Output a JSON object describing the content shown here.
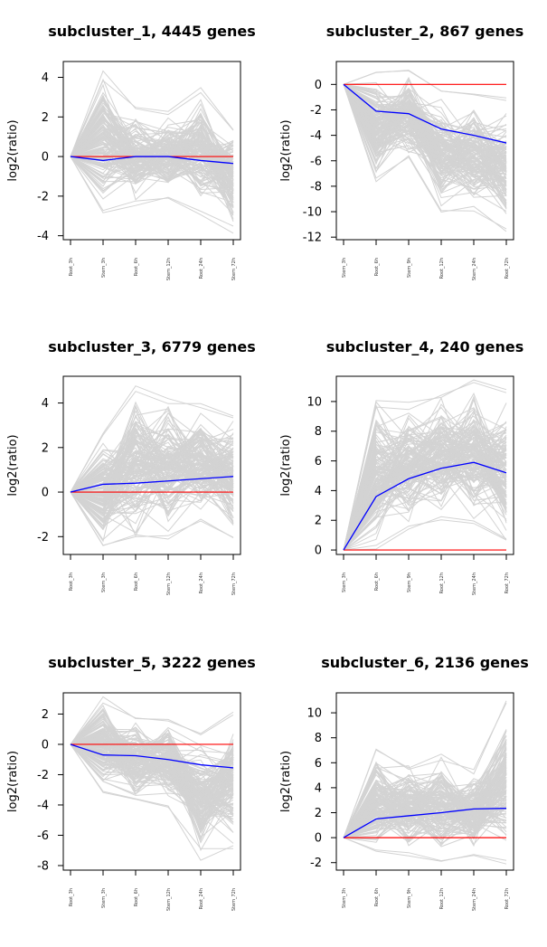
{
  "chart_data": [
    {
      "type": "line",
      "title": "subcluster_1, 4445 genes",
      "ylabel": "log2(ratio)",
      "xlabel": "",
      "categories": [
        "Root_3h",
        "Stem_3h",
        "Root_6h",
        "Stem_12h",
        "Root_24h",
        "Stem_72h"
      ],
      "ylim": [
        -4.2,
        4.8
      ],
      "yticks": [
        -4,
        -2,
        0,
        2,
        4
      ],
      "grid": false,
      "series": [
        {
          "role": "individual genes (gray band)",
          "color": "#d3d3d3",
          "upper": [
            0,
            4.4,
            2.6,
            2.4,
            3.6,
            1.5
          ],
          "lower": [
            0,
            -3.0,
            -2.5,
            -2.2,
            -3.0,
            -3.9
          ]
        },
        {
          "role": "cluster mean",
          "color": "#0000ff",
          "values": [
            0,
            -0.2,
            0,
            0,
            -0.2,
            -0.35
          ]
        },
        {
          "role": "zero reference",
          "color": "#ff0000",
          "values": [
            0,
            0,
            0,
            0,
            0,
            0
          ]
        }
      ]
    },
    {
      "type": "line",
      "title": "subcluster_2, 867 genes",
      "ylabel": "log2(ratio)",
      "xlabel": "",
      "categories": [
        "Stem_3h",
        "Root_6h",
        "Stem_9h",
        "Root_12h",
        "Stem_24h",
        "Root_72h"
      ],
      "ylim": [
        -12.2,
        1.8
      ],
      "yticks": [
        -12,
        -10,
        -8,
        -6,
        -4,
        -2,
        0
      ],
      "grid": false,
      "series": [
        {
          "role": "individual genes (gray band)",
          "color": "#d3d3d3",
          "upper": [
            0,
            1.0,
            1.3,
            -0.3,
            -0.7,
            -1.0
          ],
          "lower": [
            0,
            -7.7,
            -6.0,
            -10.5,
            -10.5,
            -11.7
          ]
        },
        {
          "role": "cluster mean",
          "color": "#0000ff",
          "values": [
            0,
            -2.1,
            -2.3,
            -3.5,
            -4.0,
            -4.6
          ]
        },
        {
          "role": "zero reference",
          "color": "#ff0000",
          "values": [
            0,
            0,
            0,
            0,
            0,
            0
          ]
        }
      ]
    },
    {
      "type": "line",
      "title": "subcluster_3, 6779 genes",
      "ylabel": "log2(ratio)",
      "xlabel": "",
      "categories": [
        "Root_3h",
        "Stem_3h",
        "Root_6h",
        "Stem_12h",
        "Root_24h",
        "Stem_72h"
      ],
      "ylim": [
        -2.8,
        5.2
      ],
      "yticks": [
        -2,
        0,
        2,
        4
      ],
      "grid": false,
      "series": [
        {
          "role": "individual genes (gray band)",
          "color": "#d3d3d3",
          "upper": [
            0,
            2.7,
            4.9,
            4.3,
            4.1,
            3.6
          ],
          "lower": [
            0,
            -2.6,
            -2.3,
            -2.3,
            -1.3,
            -2.3
          ]
        },
        {
          "role": "cluster mean",
          "color": "#0000ff",
          "values": [
            0,
            0.35,
            0.4,
            0.5,
            0.6,
            0.7
          ]
        },
        {
          "role": "zero reference",
          "color": "#ff0000",
          "values": [
            0,
            0,
            0,
            0,
            0,
            0
          ]
        }
      ]
    },
    {
      "type": "line",
      "title": "subcluster_4, 240 genes",
      "ylabel": "log2(ratio)",
      "xlabel": "",
      "categories": [
        "Stem_3h",
        "Root_6h",
        "Stem_9h",
        "Root_12h",
        "Stem_24h",
        "Root_72h"
      ],
      "ylim": [
        -0.3,
        11.7
      ],
      "yticks": [
        0,
        2,
        4,
        6,
        8,
        10
      ],
      "grid": false,
      "series": [
        {
          "role": "individual genes (gray band)",
          "color": "#d3d3d3",
          "upper": [
            0,
            10.3,
            10.0,
            11.0,
            11.5,
            10.9
          ],
          "lower": [
            0,
            -0.2,
            1.2,
            2.0,
            1.5,
            0
          ]
        },
        {
          "role": "cluster mean",
          "color": "#0000ff",
          "values": [
            0,
            3.6,
            4.8,
            5.5,
            5.9,
            5.2
          ]
        },
        {
          "role": "zero reference",
          "color": "#ff0000",
          "values": [
            0,
            0,
            0,
            0,
            0,
            0
          ]
        }
      ]
    },
    {
      "type": "line",
      "title": "subcluster_5, 3222 genes",
      "ylabel": "log2(ratio)",
      "xlabel": "",
      "categories": [
        "Root_3h",
        "Stem_3h",
        "Root_6h",
        "Stem_12h",
        "Root_24h",
        "Stem_72h"
      ],
      "ylim": [
        -8.3,
        3.4
      ],
      "yticks": [
        -8,
        -6,
        -4,
        -2,
        0,
        2
      ],
      "grid": false,
      "series": [
        {
          "role": "individual genes (gray band)",
          "color": "#d3d3d3",
          "upper": [
            0,
            3.3,
            2.1,
            1.9,
            0.8,
            2.3
          ],
          "lower": [
            0,
            -3.3,
            -4.0,
            -4.3,
            -7.7,
            -7.0
          ]
        },
        {
          "role": "cluster mean",
          "color": "#0000ff",
          "values": [
            0,
            -0.7,
            -0.75,
            -1.0,
            -1.35,
            -1.55
          ]
        },
        {
          "role": "zero reference",
          "color": "#ff0000",
          "values": [
            0,
            0,
            0,
            0,
            0,
            0
          ]
        }
      ]
    },
    {
      "type": "line",
      "title": "subcluster_6, 2136 genes",
      "ylabel": "log2(ratio)",
      "xlabel": "",
      "categories": [
        "Stem_3h",
        "Root_6h",
        "Stem_9h",
        "Root_12h",
        "Stem_24h",
        "Root_72h"
      ],
      "ylim": [
        -2.6,
        11.6
      ],
      "yticks": [
        -2,
        0,
        2,
        4,
        6,
        8,
        10
      ],
      "grid": false,
      "series": [
        {
          "role": "individual genes (gray band)",
          "color": "#d3d3d3",
          "upper": [
            0,
            7.3,
            6.1,
            6.9,
            5.6,
            11.1
          ],
          "lower": [
            0,
            -1.3,
            -1.6,
            -2.2,
            -1.6,
            -2.4
          ]
        },
        {
          "role": "cluster mean",
          "color": "#0000ff",
          "values": [
            0,
            1.5,
            1.75,
            2.0,
            2.3,
            2.35
          ]
        },
        {
          "role": "zero reference",
          "color": "#ff0000",
          "values": [
            0,
            0,
            0,
            0,
            0,
            0
          ]
        }
      ]
    }
  ]
}
